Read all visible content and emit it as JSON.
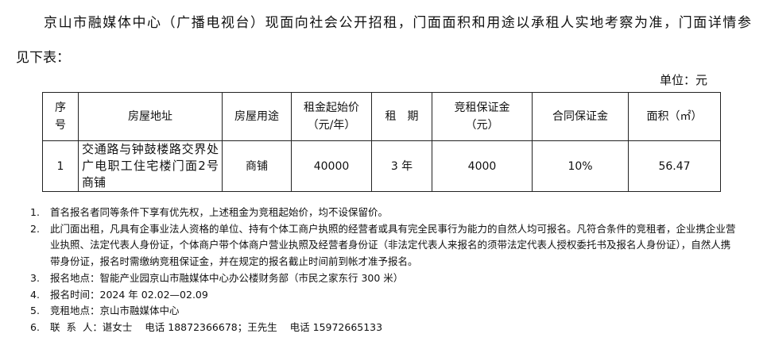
{
  "intro": {
    "line1": "京山市融媒体中心（广播电视台）现面向社会公开招租，门面面积和用途以承租人实地考察为准，门面详情参",
    "line2": "见下表："
  },
  "unit": "单位：元",
  "table": {
    "headers": [
      "序号",
      "房屋地址",
      "房屋用途",
      "租金起始价（元/年）",
      "租　期",
      "竞租保证金（元）",
      "合同保证金",
      "面积（㎡）"
    ],
    "rows": [
      [
        "1",
        "交通路与钟鼓楼路交界处广电职工住宅楼门面2号商铺",
        "商铺",
        "40000",
        "3 年",
        "4000",
        "10%",
        "56.47"
      ]
    ]
  },
  "notes": [
    {
      "num": "1.",
      "text": "首名报名者同等条件下享有优先权，上述租金为竞租起始价，均不设保留价。"
    },
    {
      "num": "2.",
      "text": "此门面出租，凡具有企事业法人资格的单位、持有个体工商户执照的经营者或具有完全民事行为能力的自然人均可报名。凡符合条件的竞租者，企业携企业营业执照、法定代表人身份证，个体商户带个体商户营业执照及经营者身份证（非法定代表人来报名的须带法定代表人授权委托书及报名人身份证），自然人携带身份证，报名时需缴纳竞租保证金，并在规定的报名截止时间前到帐才准予报名。"
    },
    {
      "num": "3.",
      "text": "报名地点：智能产业园京山市融媒体中心办公楼财务部（市民之家东行 300 米）"
    },
    {
      "num": "4.",
      "text": "报名时间：2024 年 02.02—02.09"
    },
    {
      "num": "5.",
      "text": "竞租地点：京山市融媒体中心"
    },
    {
      "num": "6.",
      "text": "联  系  人：谌女士    电话 18872366678；王先生    电话 15972665133"
    }
  ]
}
